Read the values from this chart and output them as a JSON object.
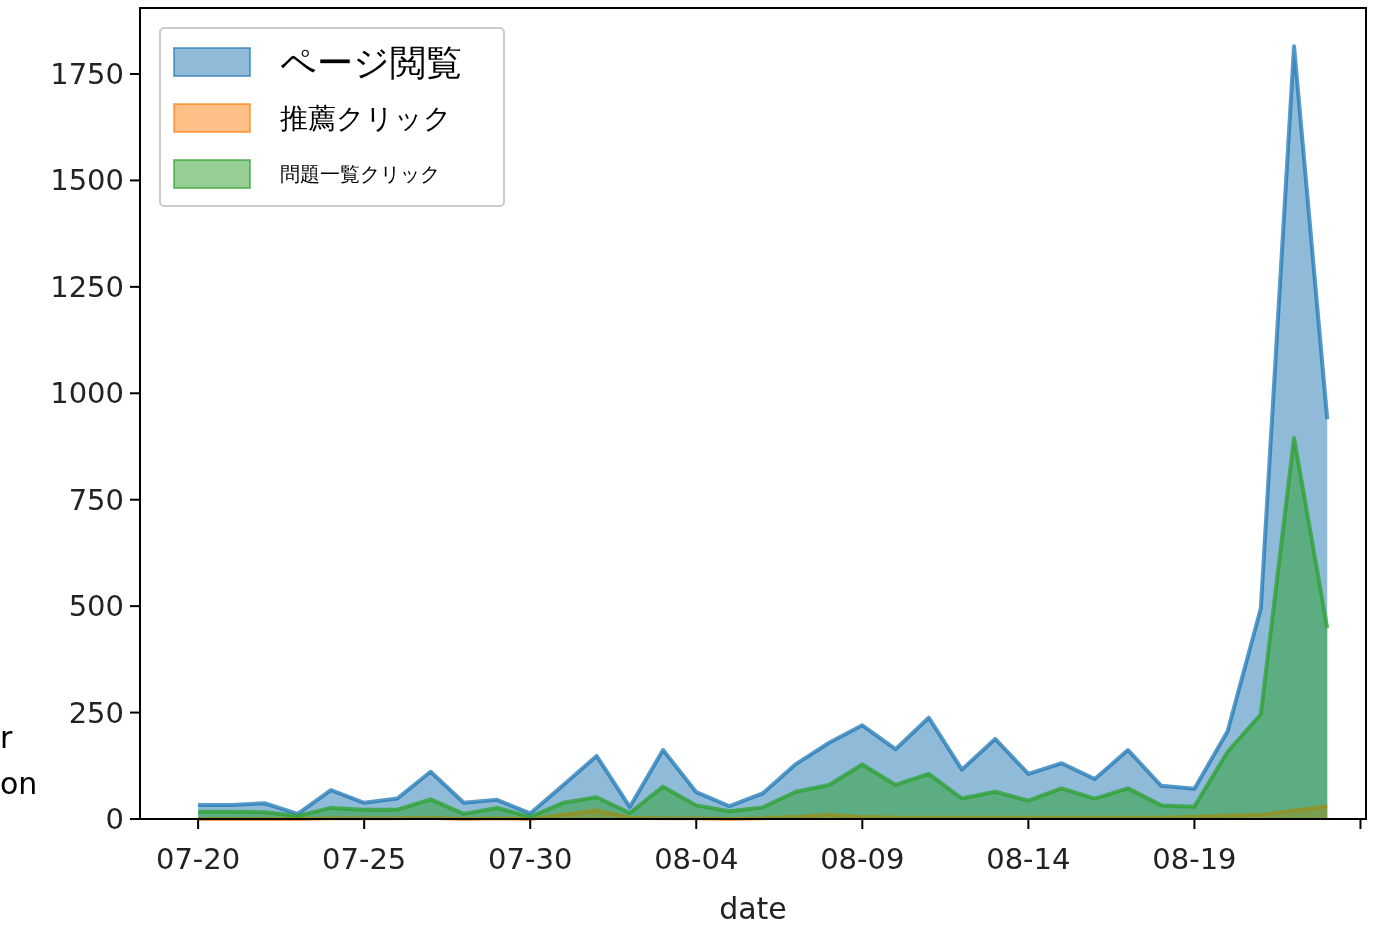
{
  "chart_data": {
    "type": "area",
    "xlabel": "date",
    "x": [
      "--07-20",
      "--07-21",
      "--07-22",
      "--07-23",
      "--07-24",
      "--07-25",
      "--07-26",
      "--07-27",
      "--07-28",
      "--07-29",
      "--07-30",
      "--07-31",
      "--08-01",
      "--08-02",
      "--08-03",
      "--08-04",
      "--08-05",
      "--08-06",
      "--08-07",
      "--08-08",
      "--08-09",
      "--08-10",
      "--08-11",
      "--08-12",
      "--08-13",
      "--08-14",
      "--08-15",
      "--08-16",
      "--08-17",
      "--08-18",
      "--08-19",
      "--08-20",
      "--08-21",
      "--08-22",
      "--08-23"
    ],
    "series": [
      {
        "name": "ページ閲覧",
        "color": "#1f77b4",
        "values": [
          33,
          33,
          37,
          12,
          68,
          38,
          48,
          111,
          38,
          45,
          13,
          80,
          148,
          28,
          162,
          63,
          30,
          60,
          129,
          179,
          220,
          164,
          238,
          116,
          188,
          106,
          131,
          94,
          162,
          78,
          71,
          206,
          495,
          1815,
          939
        ]
      },
      {
        "name": "推薦クリック",
        "color": "#ff7f0e",
        "values": [
          0,
          0,
          0,
          0,
          2,
          2,
          2,
          3,
          0,
          2,
          0,
          10,
          20,
          3,
          2,
          2,
          0,
          2,
          5,
          10,
          5,
          3,
          3,
          3,
          3,
          3,
          3,
          3,
          3,
          3,
          5,
          8,
          10,
          20,
          30
        ]
      },
      {
        "name": "問題一覧クリック",
        "color": "#2ca02c",
        "values": [
          17,
          17,
          16,
          7,
          26,
          22,
          22,
          46,
          12,
          26,
          5,
          38,
          51,
          14,
          76,
          32,
          18,
          27,
          64,
          80,
          128,
          80,
          106,
          48,
          64,
          43,
          72,
          48,
          72,
          32,
          29,
          158,
          246,
          895,
          448
        ]
      }
    ],
    "xlim": [
      "--07-18T06:00",
      "--08-24T04:00"
    ],
    "xticks": [
      {
        "value": "--07-20",
        "label": "07-20"
      },
      {
        "value": "--07-25",
        "label": "07-25"
      },
      {
        "value": "--07-30",
        "label": "07-30"
      },
      {
        "value": "--08-04",
        "label": "08-04"
      },
      {
        "value": "--08-09",
        "label": "08-09"
      },
      {
        "value": "--08-14",
        "label": "08-14"
      },
      {
        "value": "--08-19",
        "label": "08-19"
      },
      {
        "value": "--08-24",
        "label": null
      }
    ],
    "ylim": [
      0,
      1905
    ],
    "yticks": [
      0,
      250,
      500,
      750,
      1000,
      1250,
      1500,
      1750
    ],
    "legend": "top left",
    "annotations": [
      "r",
      "on"
    ]
  }
}
